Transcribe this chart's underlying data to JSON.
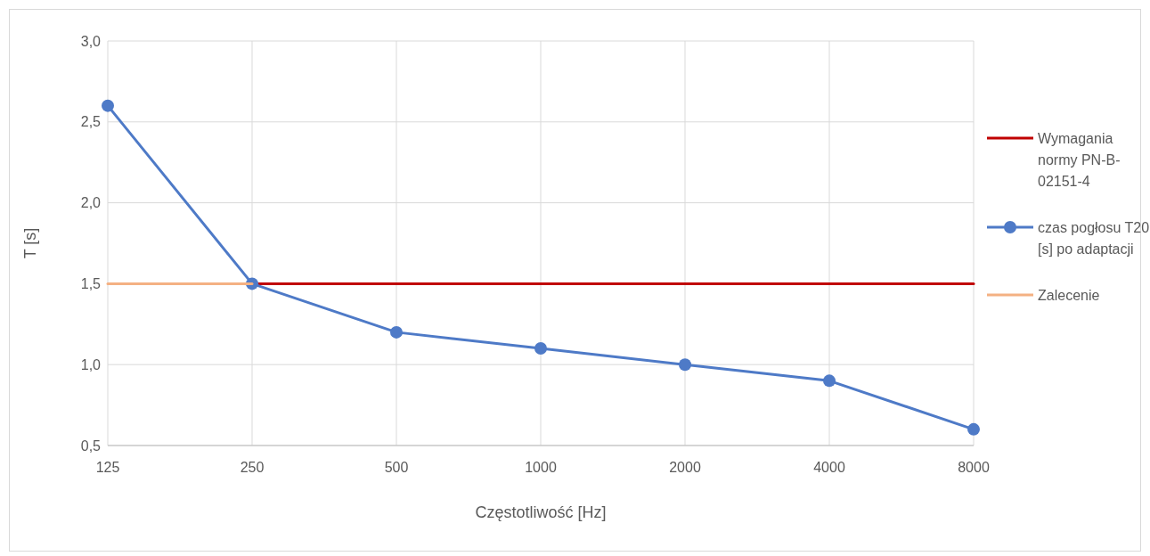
{
  "chart_data": {
    "type": "line",
    "xlabel": "Częstotliwość [Hz]",
    "ylabel": "T [s]",
    "categories": [
      "125",
      "250",
      "500",
      "1000",
      "2000",
      "4000",
      "8000"
    ],
    "ylim": [
      0.5,
      3.0
    ],
    "yticks": [
      {
        "value": 0.5,
        "label": "0,5"
      },
      {
        "value": 1.0,
        "label": "1,0"
      },
      {
        "value": 1.5,
        "label": "1,5"
      },
      {
        "value": 2.0,
        "label": "2,0"
      },
      {
        "value": 2.5,
        "label": "2,5"
      },
      {
        "value": 3.0,
        "label": "3,0"
      }
    ],
    "grid": true,
    "legend": "right",
    "line_style": "solid",
    "series": [
      {
        "name": "Wymagania normy PN-B-02151-4",
        "color": "#c00000",
        "marker": "none",
        "values": [
          null,
          1.5,
          1.5,
          1.5,
          1.5,
          1.5,
          1.5
        ]
      },
      {
        "name": "czas pogłosu T20 [s] po adaptacji",
        "color": "#4e7ac7",
        "marker": "circle",
        "values": [
          2.6,
          1.5,
          1.2,
          1.1,
          1.0,
          0.9,
          0.6
        ]
      },
      {
        "name": "Zalecenie",
        "color": "#f4b183",
        "marker": "none",
        "values": [
          1.5,
          1.5,
          null,
          null,
          null,
          null,
          null
        ]
      }
    ]
  }
}
